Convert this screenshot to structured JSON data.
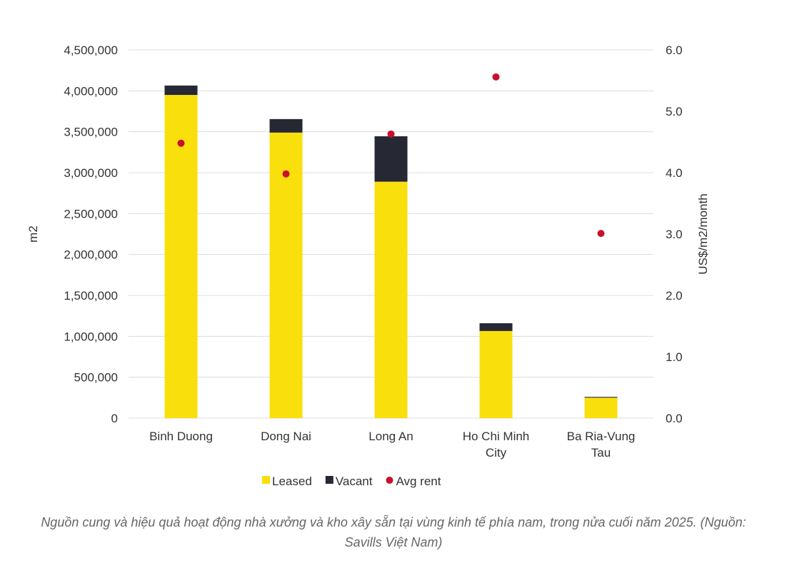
{
  "chart_data": {
    "type": "bar",
    "stacked": true,
    "categories": [
      "Binh Duong",
      "Dong Nai",
      "Long An",
      "Ho Chi Minh City",
      "Ba Ria-Vung Tau"
    ],
    "category_lines": [
      [
        "Binh Duong"
      ],
      [
        "Dong Nai"
      ],
      [
        "Long An"
      ],
      [
        "Ho Chi Minh",
        "City"
      ],
      [
        "Ba Ria-Vung",
        "Tau"
      ]
    ],
    "series": [
      {
        "name": "Leased",
        "type": "bar",
        "axis": "left",
        "color": "#f9df0c",
        "values": [
          3950000,
          3490000,
          2890000,
          1065000,
          250000
        ]
      },
      {
        "name": "Vacant",
        "type": "bar",
        "axis": "left",
        "color": "#262833",
        "values": [
          115000,
          165000,
          555000,
          95000,
          10000
        ]
      },
      {
        "name": "Avg rent",
        "type": "scatter",
        "axis": "right",
        "color": "#c8102e",
        "values": [
          4.48,
          3.98,
          4.63,
          5.56,
          3.01
        ]
      }
    ],
    "ylabel": "m2",
    "ylabel_right": "US$/m2/month",
    "ylim": [
      0,
      4500000
    ],
    "ylim_right": [
      0,
      6
    ],
    "yticks": [
      "0",
      "500,000",
      "1,000,000",
      "1,500,000",
      "2,000,000",
      "2,500,000",
      "3,000,000",
      "3,500,000",
      "4,000,000",
      "4,500,000"
    ],
    "yticks_right": [
      "0.0",
      "1.0",
      "2.0",
      "3.0",
      "4.0",
      "5.0",
      "6.0"
    ],
    "grid": true,
    "legend": "bottom-center"
  },
  "caption": "Nguồn cung và hiệu quả hoạt động nhà xưởng và kho xây sẵn tại vùng kinh tế phía nam, trong nửa cuối năm 2025. (Nguồn: Savills Việt Nam)"
}
